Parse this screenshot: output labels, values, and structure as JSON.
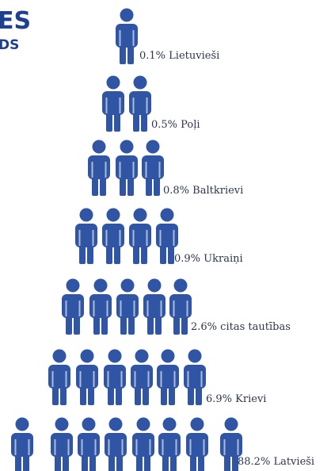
{
  "chart_data": {
    "type": "pictogram",
    "logo_text": [
      "ES",
      "DS"
    ],
    "categories": [
      "Lietuvieši",
      "Poļi",
      "Baltkrievi",
      "Ukraiņi",
      "citas tautības",
      "Krievi",
      "Latvieši"
    ],
    "values": [
      0.1,
      0.5,
      0.8,
      0.9,
      2.6,
      6.9,
      88.2
    ],
    "value_labels": [
      "0.1%",
      "0.5%",
      "0.8%",
      "0.9%",
      "2.6%",
      "6.9%",
      "88.2%"
    ],
    "color": "#2f55a4"
  }
}
